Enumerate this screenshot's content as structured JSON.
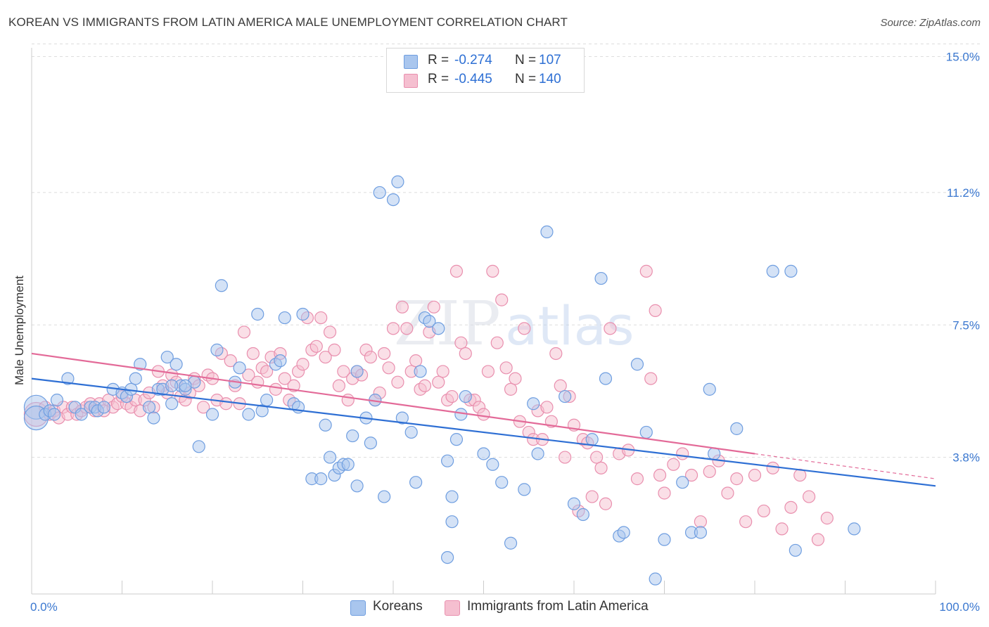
{
  "header": {
    "title": "KOREAN VS IMMIGRANTS FROM LATIN AMERICA MALE UNEMPLOYMENT CORRELATION CHART",
    "source": "Source: ZipAtlas.com"
  },
  "legend": {
    "rows": [
      {
        "r_label": "R =",
        "r_value": "-0.274",
        "n_label": "N =",
        "n_value": "107"
      },
      {
        "r_label": "R =",
        "r_value": "-0.445",
        "n_label": "N =",
        "n_value": "140"
      }
    ]
  },
  "bottom_legend": {
    "koreans": "Koreans",
    "latin": "Immigrants from Latin America"
  },
  "watermark": {
    "zip": "ZIP",
    "atlas": "atlas"
  },
  "colors": {
    "koreans_fill": "#a9c6ee",
    "koreans_stroke": "#6f9ee0",
    "koreans_line": "#2e6fd4",
    "latin_fill": "#f5bfd0",
    "latin_stroke": "#e98fae",
    "latin_line": "#e36a98",
    "tick_label": "#3b78d0",
    "grid": "#dddddd"
  },
  "chart_data": {
    "type": "scatter",
    "title": "KOREAN VS IMMIGRANTS FROM LATIN AMERICA MALE UNEMPLOYMENT CORRELATION CHART",
    "xlabel": "",
    "ylabel": "Male Unemployment",
    "xlim": [
      0,
      100
    ],
    "ylim": [
      0,
      16
    ],
    "x_tick_labels": [
      "0.0%",
      "100.0%"
    ],
    "y_ticks": [
      3.8,
      7.5,
      11.2,
      15.0
    ],
    "y_tick_labels": [
      "3.8%",
      "7.5%",
      "11.2%",
      "15.0%"
    ],
    "grid": true,
    "series": [
      {
        "name": "Koreans",
        "r": -0.274,
        "n": 107,
        "trend": {
          "x": [
            0,
            100
          ],
          "y": [
            6.0,
            3.0
          ]
        },
        "points": [
          [
            0.5,
            5.2,
            "L"
          ],
          [
            0.5,
            4.9,
            "L"
          ],
          [
            1.5,
            5.0
          ],
          [
            2,
            5.1
          ],
          [
            2.8,
            5.4
          ],
          [
            2.5,
            5.0
          ],
          [
            4,
            6.0
          ],
          [
            4.8,
            5.2
          ],
          [
            5.5,
            5.0
          ],
          [
            6.5,
            5.2
          ],
          [
            7,
            5.2
          ],
          [
            7.3,
            5.1
          ],
          [
            8,
            5.2
          ],
          [
            9,
            5.7
          ],
          [
            10,
            5.6
          ],
          [
            10.5,
            5.5
          ],
          [
            11,
            5.7
          ],
          [
            11.5,
            6.0
          ],
          [
            12,
            6.4
          ],
          [
            13,
            5.2
          ],
          [
            13.5,
            4.9
          ],
          [
            14,
            5.7
          ],
          [
            15,
            6.6
          ],
          [
            15.5,
            5.3
          ],
          [
            16,
            6.4
          ],
          [
            16.5,
            5.8
          ],
          [
            17,
            5.7
          ],
          [
            18,
            5.9
          ],
          [
            14.5,
            5.7
          ],
          [
            15.5,
            5.8
          ],
          [
            17,
            5.8
          ],
          [
            18.5,
            4.1
          ],
          [
            20,
            5.0
          ],
          [
            20.5,
            6.8
          ],
          [
            21,
            8.6
          ],
          [
            22.5,
            5.9
          ],
          [
            23,
            6.3
          ],
          [
            24,
            5.0
          ],
          [
            25,
            7.8
          ],
          [
            25.5,
            5.1
          ],
          [
            26,
            5.4
          ],
          [
            27,
            6.4
          ],
          [
            27.5,
            6.5
          ],
          [
            28,
            7.7
          ],
          [
            29,
            5.3
          ],
          [
            29.5,
            5.2
          ],
          [
            30,
            7.8
          ],
          [
            31,
            3.2
          ],
          [
            32,
            3.2
          ],
          [
            32.5,
            4.7
          ],
          [
            33,
            3.8
          ],
          [
            33.5,
            3.3
          ],
          [
            34,
            3.5
          ],
          [
            34.5,
            3.6
          ],
          [
            35,
            3.6
          ],
          [
            35.5,
            4.4
          ],
          [
            36,
            6.2
          ],
          [
            36,
            3.0
          ],
          [
            37,
            4.9
          ],
          [
            37.5,
            4.2
          ],
          [
            38,
            5.4
          ],
          [
            38.5,
            11.2
          ],
          [
            39,
            2.7
          ],
          [
            40,
            11.0
          ],
          [
            40.5,
            11.5
          ],
          [
            41,
            4.9
          ],
          [
            42,
            4.5
          ],
          [
            42.5,
            3.1
          ],
          [
            43,
            6.2
          ],
          [
            43.5,
            7.7
          ],
          [
            44,
            7.6
          ],
          [
            45,
            7.4
          ],
          [
            46,
            3.7
          ],
          [
            46.5,
            2.7
          ],
          [
            47,
            4.3
          ],
          [
            47.5,
            5.0
          ],
          [
            48,
            5.5
          ],
          [
            50,
            3.9
          ],
          [
            51,
            3.6
          ],
          [
            52,
            3.1
          ],
          [
            53,
            1.4
          ],
          [
            54.5,
            2.9
          ],
          [
            55.5,
            5.3
          ],
          [
            56,
            3.9
          ],
          [
            57,
            10.1
          ],
          [
            59,
            5.5
          ],
          [
            60,
            2.5
          ],
          [
            61,
            2.2
          ],
          [
            62,
            4.3
          ],
          [
            63,
            8.8
          ],
          [
            63.5,
            6.0
          ],
          [
            65,
            1.6
          ],
          [
            65.5,
            1.7
          ],
          [
            67,
            6.4
          ],
          [
            68,
            4.5
          ],
          [
            69,
            0.4
          ],
          [
            70,
            1.5
          ],
          [
            72,
            3.1
          ],
          [
            73,
            1.7
          ],
          [
            74,
            1.7
          ],
          [
            75.5,
            3.9
          ],
          [
            75,
            5.7
          ],
          [
            78,
            4.6
          ],
          [
            82,
            9.0
          ],
          [
            84,
            9.0
          ],
          [
            84.5,
            1.2
          ],
          [
            91,
            1.8
          ],
          [
            46,
            1.0
          ],
          [
            46.5,
            2.0
          ]
        ]
      },
      {
        "name": "Immigrants from Latin America",
        "r": -0.445,
        "n": 140,
        "trend": {
          "x": [
            0,
            80
          ],
          "y": [
            6.7,
            3.9
          ]
        },
        "trend_dashed": {
          "x": [
            80,
            100
          ],
          "y": [
            3.9,
            3.2
          ]
        },
        "points": [
          [
            0.5,
            5.0,
            "L"
          ],
          [
            1.5,
            5.2
          ],
          [
            2,
            5.0
          ],
          [
            2.5,
            5.1
          ],
          [
            3,
            4.9
          ],
          [
            3.5,
            5.2
          ],
          [
            4,
            5.0
          ],
          [
            4.5,
            5.2
          ],
          [
            5,
            5.0
          ],
          [
            5.5,
            5.1
          ],
          [
            6,
            5.2
          ],
          [
            6.5,
            5.3
          ],
          [
            7,
            5.1
          ],
          [
            7.5,
            5.3
          ],
          [
            8,
            5.1
          ],
          [
            8.5,
            5.4
          ],
          [
            9,
            5.2
          ],
          [
            9.5,
            5.3
          ],
          [
            10,
            5.5
          ],
          [
            10.5,
            5.3
          ],
          [
            11,
            5.2
          ],
          [
            11.5,
            5.4
          ],
          [
            12,
            5.1
          ],
          [
            12.5,
            5.4
          ],
          [
            13,
            5.6
          ],
          [
            13.5,
            5.2
          ],
          [
            14,
            6.2
          ],
          [
            14.5,
            5.8
          ],
          [
            15,
            5.6
          ],
          [
            15.5,
            6.1
          ],
          [
            16,
            5.9
          ],
          [
            16.5,
            5.5
          ],
          [
            17,
            5.4
          ],
          [
            17.5,
            5.6
          ],
          [
            18,
            6.0
          ],
          [
            18.5,
            5.8
          ],
          [
            19,
            5.2
          ],
          [
            19.5,
            6.1
          ],
          [
            20,
            6.0
          ],
          [
            20.5,
            5.4
          ],
          [
            21,
            6.7
          ],
          [
            21.5,
            5.3
          ],
          [
            22,
            6.5
          ],
          [
            22.5,
            5.8
          ],
          [
            23,
            5.3
          ],
          [
            23.5,
            7.3
          ],
          [
            24,
            6.1
          ],
          [
            24.5,
            6.7
          ],
          [
            25,
            5.9
          ],
          [
            25.5,
            6.3
          ],
          [
            26,
            6.2
          ],
          [
            26.5,
            6.6
          ],
          [
            27,
            5.7
          ],
          [
            27.5,
            6.7
          ],
          [
            28,
            6.0
          ],
          [
            28.5,
            5.4
          ],
          [
            29,
            5.8
          ],
          [
            29.5,
            6.2
          ],
          [
            30,
            6.4
          ],
          [
            30.5,
            7.7
          ],
          [
            31,
            6.8
          ],
          [
            31.5,
            6.9
          ],
          [
            32,
            7.7
          ],
          [
            32.5,
            6.6
          ],
          [
            33,
            7.3
          ],
          [
            33.5,
            6.8
          ],
          [
            34,
            5.8
          ],
          [
            34.5,
            6.2
          ],
          [
            35,
            5.4
          ],
          [
            35.5,
            6.0
          ],
          [
            36,
            6.2
          ],
          [
            36.5,
            6.1
          ],
          [
            37,
            6.8
          ],
          [
            37.5,
            6.6
          ],
          [
            38,
            5.4
          ],
          [
            38.5,
            5.6
          ],
          [
            39,
            6.7
          ],
          [
            39.5,
            6.3
          ],
          [
            40,
            7.4
          ],
          [
            40.5,
            5.9
          ],
          [
            41,
            8.0
          ],
          [
            41.5,
            7.4
          ],
          [
            42,
            6.2
          ],
          [
            42.5,
            6.5
          ],
          [
            43,
            5.7
          ],
          [
            43.5,
            5.8
          ],
          [
            44,
            7.3
          ],
          [
            44.5,
            8.0
          ],
          [
            45,
            5.9
          ],
          [
            45.5,
            6.2
          ],
          [
            46,
            5.4
          ],
          [
            46.5,
            5.5
          ],
          [
            47,
            9.0
          ],
          [
            47.5,
            7.0
          ],
          [
            48,
            6.7
          ],
          [
            48.5,
            5.4
          ],
          [
            49,
            5.4
          ],
          [
            49.5,
            5.2
          ],
          [
            50,
            5.0
          ],
          [
            50.5,
            6.2
          ],
          [
            51,
            9.0
          ],
          [
            51.5,
            7.0
          ],
          [
            52,
            8.2
          ],
          [
            52.5,
            6.3
          ],
          [
            53,
            5.7
          ],
          [
            53.5,
            6.0
          ],
          [
            54,
            4.8
          ],
          [
            54.5,
            7.4
          ],
          [
            55,
            4.5
          ],
          [
            55.5,
            4.3
          ],
          [
            56,
            5.1
          ],
          [
            56.5,
            4.3
          ],
          [
            57,
            5.2
          ],
          [
            57.5,
            4.8
          ],
          [
            58,
            6.7
          ],
          [
            58.5,
            5.8
          ],
          [
            59,
            3.8
          ],
          [
            59.5,
            5.5
          ],
          [
            60,
            4.7
          ],
          [
            60.5,
            2.3
          ],
          [
            61,
            4.3
          ],
          [
            61.5,
            4.2
          ],
          [
            62,
            2.7
          ],
          [
            62.5,
            3.8
          ],
          [
            63,
            3.5
          ],
          [
            63.5,
            2.5
          ],
          [
            64,
            7.4
          ],
          [
            65,
            3.9
          ],
          [
            66,
            4.0
          ],
          [
            67,
            3.2
          ],
          [
            68,
            9.0
          ],
          [
            68.5,
            6.0
          ],
          [
            69,
            7.9
          ],
          [
            69.5,
            3.3
          ],
          [
            70,
            2.8
          ],
          [
            71,
            3.6
          ],
          [
            72,
            3.9
          ],
          [
            73,
            3.3
          ],
          [
            74,
            2.0
          ],
          [
            75,
            3.4
          ],
          [
            76,
            3.7
          ],
          [
            77,
            2.8
          ],
          [
            78,
            3.2
          ],
          [
            79,
            2.0
          ],
          [
            80,
            3.3
          ],
          [
            81,
            2.3
          ],
          [
            82,
            3.5
          ],
          [
            83,
            1.8
          ],
          [
            84,
            2.4
          ],
          [
            85,
            3.3
          ],
          [
            86,
            2.7
          ],
          [
            87,
            1.5
          ],
          [
            88,
            2.1
          ]
        ]
      }
    ]
  }
}
